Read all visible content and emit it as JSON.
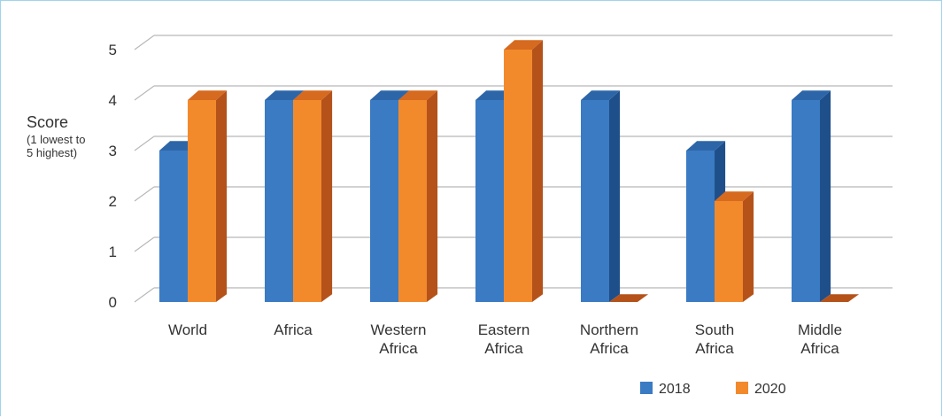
{
  "chart_data": {
    "type": "bar",
    "title": "",
    "ylabel": "Score",
    "ylabel_sub": "(1 lowest to 5 highest)",
    "ylabel_sub_line1": "(1 lowest to",
    "ylabel_sub_line2": "5 highest)",
    "xlabel": "",
    "ylim": [
      0,
      5
    ],
    "yticks": [
      "0",
      "1",
      "2",
      "3",
      "4",
      "5"
    ],
    "categories": [
      [
        "World"
      ],
      [
        "Africa"
      ],
      [
        "Western",
        "Africa"
      ],
      [
        "Eastern",
        "Africa"
      ],
      [
        "Northern",
        "Africa"
      ],
      [
        "South",
        "Africa"
      ],
      [
        "Middle",
        "Africa"
      ]
    ],
    "series": [
      {
        "name": "2018",
        "values": [
          3,
          4,
          4,
          4,
          4,
          3,
          4
        ]
      },
      {
        "name": "2020",
        "values": [
          4,
          4,
          4,
          5,
          0,
          2,
          0
        ]
      }
    ],
    "colors": {
      "2018": {
        "front": "#3a7bc4",
        "side": "#1f4f8a",
        "top": "#2d66a8"
      },
      "2020": {
        "front": "#f28a2c",
        "side": "#b5521a",
        "top": "#d66a1f"
      },
      "grid": "#b8b8b8",
      "text": "#333333"
    },
    "grid": true,
    "legend_placement": "bottom-right",
    "projection": "3d"
  }
}
